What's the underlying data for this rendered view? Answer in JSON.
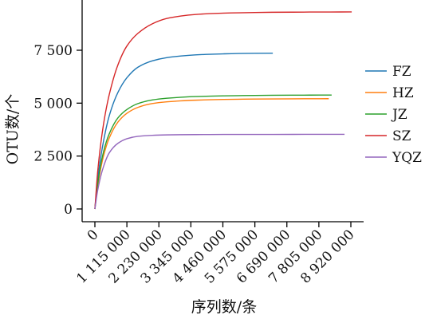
{
  "chart_data": {
    "type": "line",
    "title": "",
    "xlabel": "序列数/条",
    "ylabel": "OTU数/个",
    "xlim": [
      0,
      8920000
    ],
    "ylim": [
      0,
      9600
    ],
    "x_ticks": [
      0,
      1115000,
      2230000,
      3345000,
      4460000,
      5575000,
      6690000,
      7805000,
      8920000
    ],
    "x_tick_labels": [
      "0",
      "1 115 000",
      "2 230 000",
      "3 345 000",
      "4 460 000",
      "5 575 000",
      "6 690 000",
      "7 805 000",
      "8 920 000"
    ],
    "y_ticks": [
      0,
      2500,
      5000,
      7500
    ],
    "y_tick_labels": [
      "0",
      "2 500",
      "5 000",
      "7 500"
    ],
    "grid": false,
    "legend_position": "right",
    "series": [
      {
        "name": "FZ",
        "color": "#1f77b4",
        "x": [
          0,
          100000,
          300000,
          500000,
          800000,
          1115000,
          1500000,
          2000000,
          2500000,
          3000000,
          3500000,
          4000000,
          4500000,
          5000000,
          5575000,
          6200000
        ],
        "y": [
          0,
          1450,
          3200,
          4400,
          5500,
          6200,
          6700,
          7000,
          7150,
          7230,
          7280,
          7310,
          7330,
          7345,
          7355,
          7360
        ]
      },
      {
        "name": "HZ",
        "color": "#ff7f0e",
        "x": [
          0,
          100000,
          300000,
          500000,
          800000,
          1115000,
          1500000,
          2000000,
          2500000,
          3000000,
          3500000,
          4000000,
          4500000,
          5000000,
          5575000,
          6200000,
          6900000,
          7500000,
          8150000
        ],
        "y": [
          0,
          1100,
          2500,
          3350,
          4100,
          4520,
          4800,
          4980,
          5060,
          5110,
          5140,
          5160,
          5175,
          5185,
          5195,
          5200,
          5205,
          5208,
          5210
        ]
      },
      {
        "name": "JZ",
        "color": "#2ca02c",
        "x": [
          0,
          100000,
          300000,
          500000,
          800000,
          1115000,
          1500000,
          2000000,
          2500000,
          3000000,
          3500000,
          4000000,
          4500000,
          5000000,
          5575000,
          6200000,
          6900000,
          7500000,
          8250000
        ],
        "y": [
          0,
          1200,
          2700,
          3550,
          4300,
          4700,
          4980,
          5150,
          5230,
          5280,
          5310,
          5330,
          5345,
          5355,
          5365,
          5372,
          5378,
          5380,
          5382
        ]
      },
      {
        "name": "SZ",
        "color": "#d62728",
        "x": [
          0,
          100000,
          300000,
          500000,
          800000,
          1115000,
          1500000,
          2000000,
          2500000,
          3000000,
          3500000,
          4000000,
          4500000,
          5000000,
          5575000,
          6200000,
          6900000,
          7500000,
          8200000,
          8950000
        ],
        "y": [
          0,
          1800,
          4000,
          5400,
          6800,
          7700,
          8300,
          8750,
          9000,
          9120,
          9190,
          9230,
          9255,
          9270,
          9285,
          9295,
          9300,
          9305,
          9308,
          9310
        ]
      },
      {
        "name": "YQZ",
        "color": "#9467bd",
        "x": [
          0,
          100000,
          300000,
          500000,
          800000,
          1115000,
          1500000,
          2000000,
          2500000,
          3000000,
          3500000,
          4000000,
          4500000,
          5000000,
          5575000,
          6200000,
          6900000,
          7500000,
          8200000,
          8700000
        ],
        "y": [
          0,
          900,
          2000,
          2650,
          3100,
          3320,
          3430,
          3480,
          3500,
          3510,
          3515,
          3518,
          3520,
          3521,
          3522,
          3523,
          3524,
          3525,
          3526,
          3527
        ]
      }
    ]
  }
}
